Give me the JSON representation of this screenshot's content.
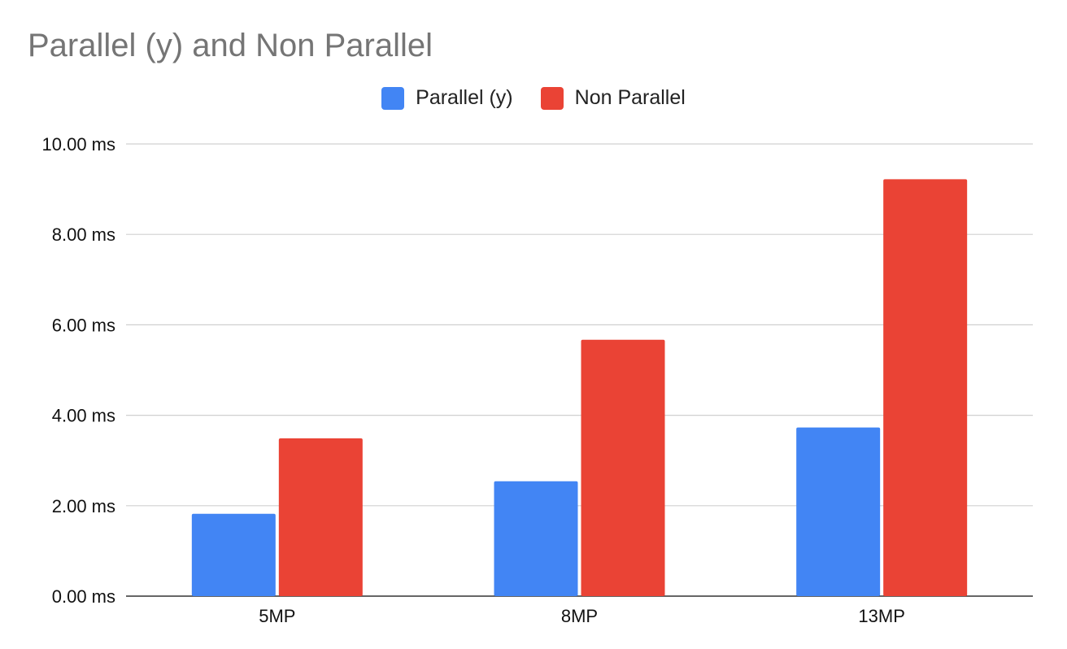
{
  "chart_data": {
    "type": "bar",
    "title": "Parallel (y) and Non Parallel",
    "xlabel": "",
    "ylabel": "",
    "categories": [
      "5MP",
      "8MP",
      "13MP"
    ],
    "series": [
      {
        "name": "Parallel (y)",
        "color": "#4285F4",
        "values": [
          1.82,
          2.54,
          3.73
        ]
      },
      {
        "name": "Non Parallel",
        "color": "#EA4335",
        "values": [
          3.49,
          5.67,
          9.22
        ]
      }
    ],
    "ylim": [
      0,
      10
    ],
    "yticks": [
      0,
      2,
      4,
      6,
      8,
      10
    ],
    "ytick_labels": [
      "0.00 ms",
      "2.00 ms",
      "4.00 ms",
      "6.00 ms",
      "8.00 ms",
      "10.00 ms"
    ],
    "grid": true,
    "legend_position": "top-center"
  }
}
